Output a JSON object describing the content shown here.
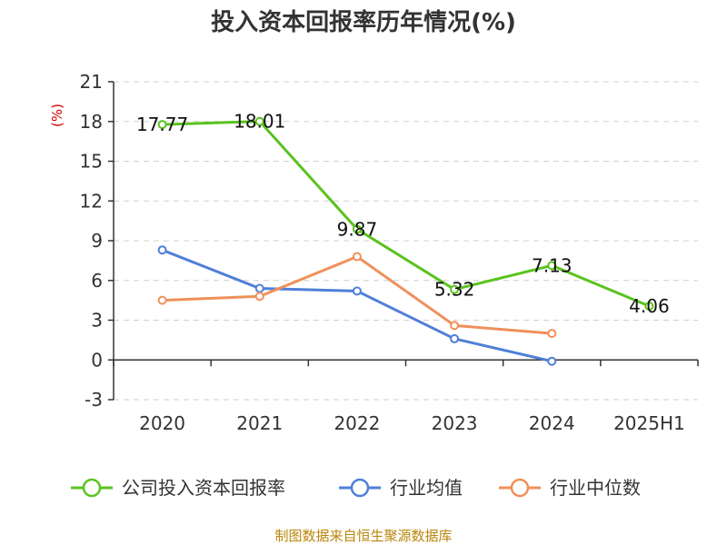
{
  "title": "投入资本回报率历年情况(%)",
  "source": "制图数据来自恒生聚源数据库",
  "chart_data": {
    "type": "line",
    "title": "投入资本回报率历年情况(%)",
    "ylabel": "(%)",
    "xlabel": "",
    "categories": [
      "2020",
      "2021",
      "2022",
      "2023",
      "2024",
      "2025H1"
    ],
    "ylim": [
      -3,
      21
    ],
    "yticks": [
      -3,
      0,
      3,
      6,
      9,
      12,
      15,
      18,
      21
    ],
    "grid": true,
    "legend_position": "bottom",
    "series": [
      {
        "name": "公司投入资本回报率",
        "color": "#5ac31e",
        "values": [
          17.77,
          18.01,
          9.87,
          5.32,
          7.13,
          4.06
        ],
        "labels": [
          "17.77",
          "18.01",
          "9.87",
          "5.32",
          "7.13",
          "4.06"
        ]
      },
      {
        "name": "行业均值",
        "color": "#4f7fd8",
        "values": [
          8.3,
          5.4,
          5.2,
          1.6,
          -0.1,
          null
        ]
      },
      {
        "name": "行业中位数",
        "color": "#f0905a",
        "values": [
          4.5,
          4.8,
          7.8,
          2.6,
          2.0,
          null
        ]
      }
    ]
  }
}
